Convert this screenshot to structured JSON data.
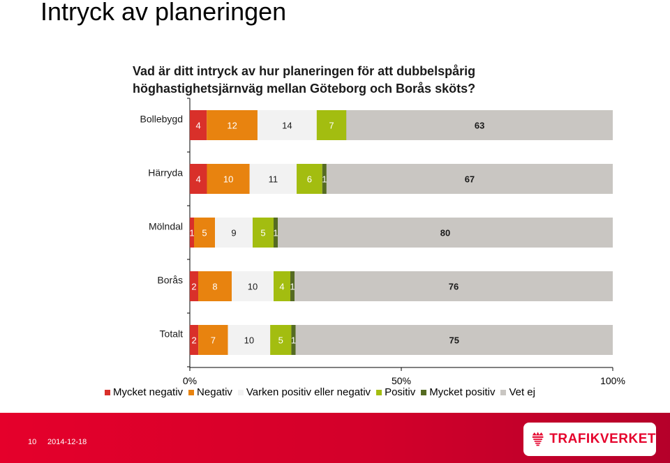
{
  "slide": {
    "title": "Intryck av planeringen",
    "page_number": "10",
    "date": "2014-12-18",
    "logo_text": "TRAFIKVERKET"
  },
  "colors": {
    "mycket_negativ": "#d9302a",
    "negativ": "#e8830f",
    "varken": "#f2f2f2",
    "positiv": "#a3bd10",
    "mycket_positiv": "#556b22",
    "vet_ej": "#c9c6c2",
    "footer_red": "#e5002b"
  },
  "chart_data": {
    "type": "bar",
    "orientation": "horizontal",
    "stacked": "percent",
    "title": "Vad är ditt intryck av hur planeringen för att dubbelspårig höghastighetsjärnväg mellan Göteborg och Borås sköts?",
    "categories": [
      "Bollebygd",
      "Härryda",
      "Mölndal",
      "Borås",
      "Totalt"
    ],
    "series": [
      {
        "name": "Mycket negativ",
        "color_key": "mycket_negativ",
        "values": [
          4,
          4,
          1,
          2,
          2
        ]
      },
      {
        "name": "Negativ",
        "color_key": "negativ",
        "values": [
          12,
          10,
          5,
          8,
          7
        ]
      },
      {
        "name": "Varken positiv eller negativ",
        "color_key": "varken",
        "values": [
          14,
          11,
          9,
          10,
          10
        ]
      },
      {
        "name": "Positiv",
        "color_key": "positiv",
        "values": [
          7,
          6,
          5,
          4,
          5
        ]
      },
      {
        "name": "Mycket positiv",
        "color_key": "mycket_positiv",
        "values": [
          0,
          1,
          1,
          1,
          1
        ]
      },
      {
        "name": "Vet ej",
        "color_key": "vet_ej",
        "values": [
          63,
          67,
          80,
          76,
          75
        ]
      }
    ],
    "x_ticks": [
      "0%",
      "50%",
      "100%"
    ],
    "xlim": [
      0,
      100
    ],
    "legend_position": "bottom",
    "grid": false
  }
}
